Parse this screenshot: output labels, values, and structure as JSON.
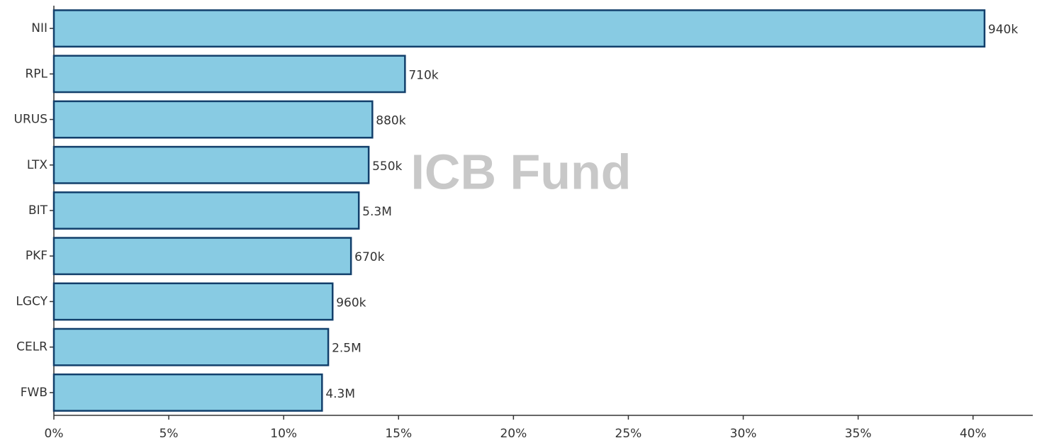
{
  "chart_data": {
    "type": "barh",
    "watermark": "ICB Fund",
    "categories": [
      "NII",
      "RPL",
      "URUS",
      "LTX",
      "BIT",
      "PKF",
      "LGCY",
      "CELR",
      "FWB"
    ],
    "values": [
      40.5,
      15.28,
      13.86,
      13.7,
      13.27,
      12.93,
      12.13,
      11.94,
      11.67
    ],
    "bar_labels": [
      "940k",
      "710k",
      "880k",
      "550k",
      "5.3M",
      "670k",
      "960k",
      "2.5M",
      "4.3M"
    ],
    "color": "#88cbe3",
    "edge_color": "#123f6b",
    "xlim": [
      0,
      42.6
    ],
    "xticks": [
      {
        "value": 0,
        "label": "0%"
      },
      {
        "value": 5,
        "label": "5%"
      },
      {
        "value": 10,
        "label": "10%"
      },
      {
        "value": 15,
        "label": "15%"
      },
      {
        "value": 20,
        "label": "20%"
      },
      {
        "value": 25,
        "label": "25%"
      },
      {
        "value": 30,
        "label": "30%"
      },
      {
        "value": 35,
        "label": "35%"
      },
      {
        "value": 40,
        "label": "40%"
      }
    ],
    "grid": false
  }
}
